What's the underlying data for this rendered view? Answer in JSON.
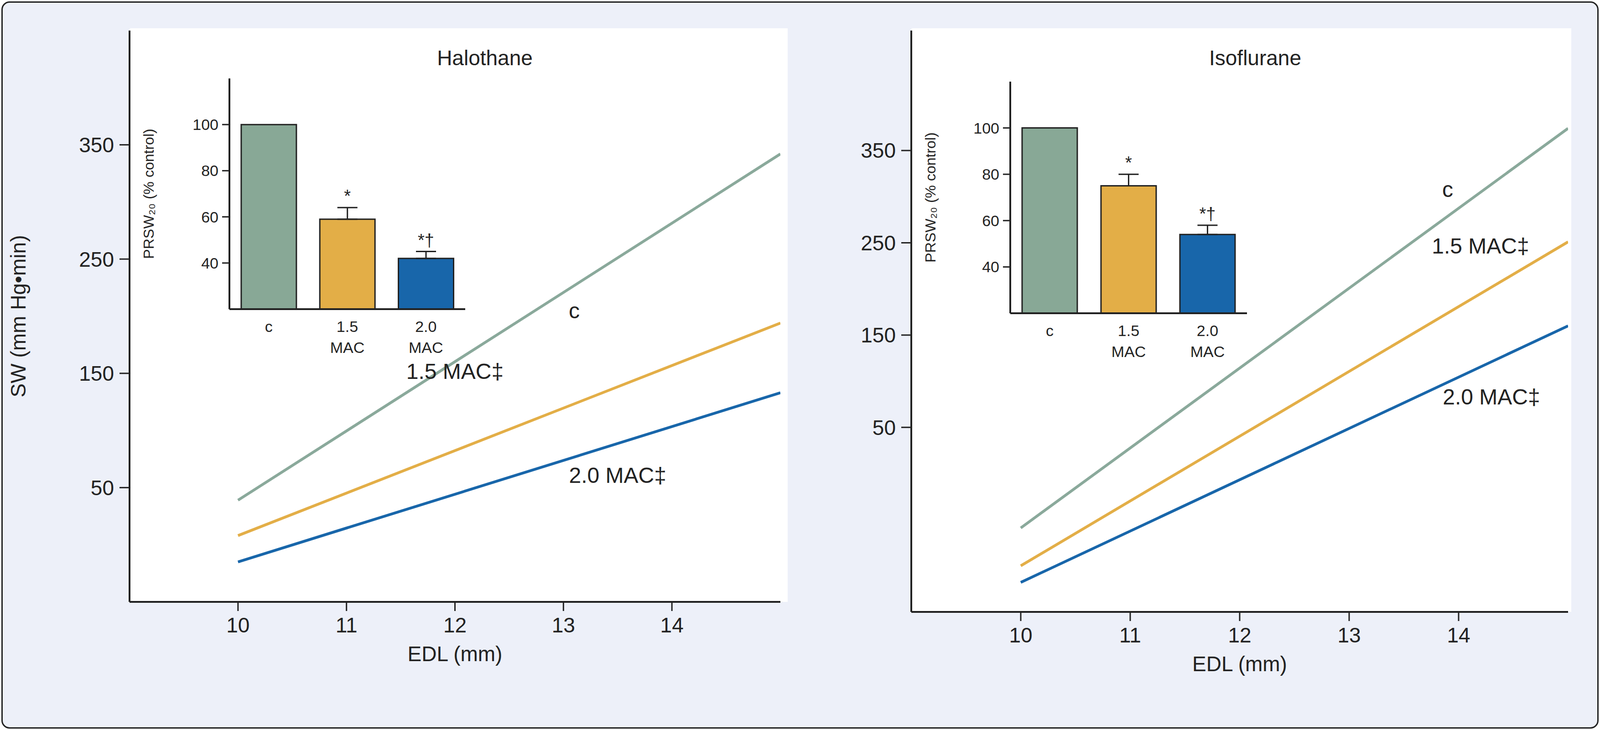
{
  "chart_data": [
    {
      "type": "line",
      "title": "Halothane",
      "x_label": "EDL (mm)",
      "y_label": "SW (mm Hg•min)",
      "xlim": [
        9,
        15
      ],
      "xticks": [
        10,
        11,
        12,
        13,
        14
      ],
      "ylim": [
        -50,
        450
      ],
      "yticks": [
        50,
        150,
        250,
        350
      ],
      "x": [
        10,
        15
      ],
      "series": [
        {
          "name": "c",
          "color": "#8aa99b",
          "values": [
            39,
            342
          ]
        },
        {
          "name": "1.5 MAC‡",
          "color": "#e3ae47",
          "values": [
            8,
            194
          ]
        },
        {
          "name": "2.0 MAC‡",
          "color": "#1866aa",
          "values": [
            -15,
            133
          ]
        }
      ]
    },
    {
      "type": "bar",
      "y_label": "PRSW₂₀ (% control)",
      "categories": [
        "c",
        "1.5 MAC",
        "2.0 MAC"
      ],
      "values": [
        100,
        59,
        42
      ],
      "errors": [
        null,
        5,
        3
      ],
      "annotations": [
        null,
        "*",
        "*†"
      ],
      "colors": [
        "#88a896",
        "#e3ae47",
        "#1866aa"
      ],
      "ylim": [
        20,
        120
      ],
      "yticks": [
        40,
        60,
        80,
        100
      ]
    },
    {
      "type": "line",
      "title": "Isoflurane",
      "x_label": "EDL (mm)",
      "xlim": [
        9,
        15
      ],
      "xticks": [
        10,
        11,
        12,
        13,
        14
      ],
      "ylim": [
        -150,
        480
      ],
      "yticks": [
        50,
        150,
        250,
        350
      ],
      "x": [
        10,
        15
      ],
      "series": [
        {
          "name": "c",
          "color": "#8aa99b",
          "values": [
            -59,
            374
          ]
        },
        {
          "name": "1.5 MAC‡",
          "color": "#e3ae47",
          "values": [
            -100,
            251
          ]
        },
        {
          "name": "2.0 MAC‡",
          "color": "#1866aa",
          "values": [
            -118,
            160
          ]
        }
      ]
    },
    {
      "type": "bar",
      "y_label": "PRSW₂₀ (% control)",
      "categories": [
        "c",
        "1.5 MAC",
        "2.0 MAC"
      ],
      "values": [
        100,
        75,
        54
      ],
      "errors": [
        null,
        5,
        4
      ],
      "annotations": [
        null,
        "*",
        "*†"
      ],
      "colors": [
        "#88a896",
        "#e3ae47",
        "#1866aa"
      ],
      "ylim": [
        20,
        120
      ],
      "yticks": [
        40,
        60,
        80,
        100
      ]
    }
  ]
}
